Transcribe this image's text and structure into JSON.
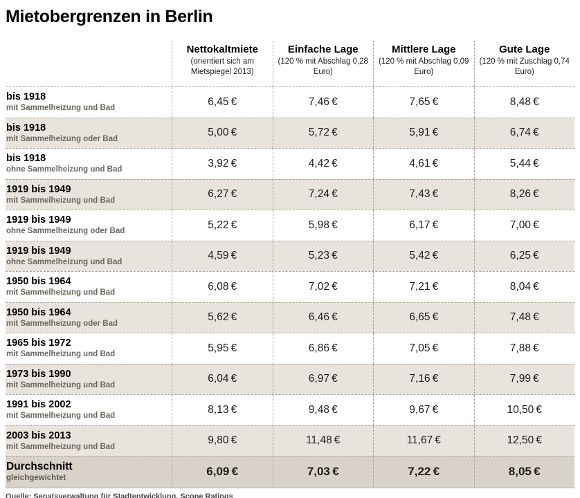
{
  "title": "Mietobergrenzen in Berlin",
  "source": "Quelle: Senatsverwaltung für Stadtentwicklung, Scope Ratings",
  "colors": {
    "row_alt": "#e8e3dc",
    "row_total": "#d8d2c9",
    "dash": "#a6a098"
  },
  "table": {
    "columns": [
      {
        "title": "Nettokaltmiete",
        "subtitle": "(orientiert sich am Mietspiegel 2013)"
      },
      {
        "title": "Einfache Lage",
        "subtitle": "(120 % mit Abschlag 0,28 Euro)"
      },
      {
        "title": "Mittlere Lage",
        "subtitle": "(120 % mit Abschlag 0,09 Euro)"
      },
      {
        "title": "Gute Lage",
        "subtitle": "(120 % mit Zuschlag 0,74 Euro)"
      }
    ],
    "rows": [
      {
        "period": "bis 1918",
        "condition": "mit Sammelheizung und Bad",
        "values": [
          "6,45 €",
          "7,46 €",
          "7,65 €",
          "8,48 €"
        ]
      },
      {
        "period": "bis 1918",
        "condition": "mit Sammelheizung oder Bad",
        "values": [
          "5,00 €",
          "5,72 €",
          "5,91 €",
          "6,74 €"
        ]
      },
      {
        "period": "bis 1918",
        "condition": "ohne Sammelheizung und Bad",
        "values": [
          "3,92 €",
          "4,42 €",
          "4,61 €",
          "5,44 €"
        ]
      },
      {
        "period": "1919 bis 1949",
        "condition": "mit Sammelheizung und Bad",
        "values": [
          "6,27 €",
          "7,24 €",
          "7,43 €",
          "8,26 €"
        ]
      },
      {
        "period": "1919 bis 1949",
        "condition": "ohne Sammelheizung oder Bad",
        "values": [
          "5,22 €",
          "5,98 €",
          "6,17 €",
          "7,00 €"
        ]
      },
      {
        "period": "1919 bis 1949",
        "condition": "ohne Sammelheizung und Bad",
        "values": [
          "4,59 €",
          "5,23 €",
          "5,42 €",
          "6,25 €"
        ]
      },
      {
        "period": "1950 bis 1964",
        "condition": "mit Sammelheizung und Bad",
        "values": [
          "6,08 €",
          "7,02 €",
          "7,21 €",
          "8,04 €"
        ]
      },
      {
        "period": "1950 bis 1964",
        "condition": "mit Sammelheizung oder Bad",
        "values": [
          "5,62 €",
          "6,46 €",
          "6,65 €",
          "7,48 €"
        ]
      },
      {
        "period": "1965 bis 1972",
        "condition": "mit Sammelheizung und Bad",
        "values": [
          "5,95 €",
          "6,86 €",
          "7,05 €",
          "7,88 €"
        ]
      },
      {
        "period": "1973 bis 1990",
        "condition": "mit Sammelheizung und Bad",
        "values": [
          "6,04 €",
          "6,97 €",
          "7,16 €",
          "7,99 €"
        ]
      },
      {
        "period": "1991 bis 2002",
        "condition": "mit Sammelheizung und Bad",
        "values": [
          "8,13 €",
          "9,48 €",
          "9,67 €",
          "10,50 €"
        ]
      },
      {
        "period": "2003 bis 2013",
        "condition": "mit Sammelheizung und Bad",
        "values": [
          "9,80 €",
          "11,48 €",
          "11,67 €",
          "12,50 €"
        ]
      }
    ],
    "total": {
      "period": "Durchschnitt",
      "condition": "gleichgewichtet",
      "values": [
        "6,09 €",
        "7,03 €",
        "7,22 €",
        "8,05 €"
      ]
    }
  },
  "chart_data": {
    "type": "table",
    "title": "Mietobergrenzen in Berlin",
    "columns": [
      "Nettokaltmiete (orientiert sich am Mietspiegel 2013)",
      "Einfache Lage (120 % mit Abschlag 0,28 Euro)",
      "Mittlere Lage (120 % mit Abschlag 0,09 Euro)",
      "Gute Lage (120 % mit Zuschlag 0,74 Euro)"
    ],
    "unit": "EUR",
    "rows": [
      {
        "label": "bis 1918 – mit Sammelheizung und Bad",
        "values": [
          6.45,
          7.46,
          7.65,
          8.48
        ]
      },
      {
        "label": "bis 1918 – mit Sammelheizung oder Bad",
        "values": [
          5.0,
          5.72,
          5.91,
          6.74
        ]
      },
      {
        "label": "bis 1918 – ohne Sammelheizung und Bad",
        "values": [
          3.92,
          4.42,
          4.61,
          5.44
        ]
      },
      {
        "label": "1919 bis 1949 – mit Sammelheizung und Bad",
        "values": [
          6.27,
          7.24,
          7.43,
          8.26
        ]
      },
      {
        "label": "1919 bis 1949 – ohne Sammelheizung oder Bad",
        "values": [
          5.22,
          5.98,
          6.17,
          7.0
        ]
      },
      {
        "label": "1919 bis 1949 – ohne Sammelheizung und Bad",
        "values": [
          4.59,
          5.23,
          5.42,
          6.25
        ]
      },
      {
        "label": "1950 bis 1964 – mit Sammelheizung und Bad",
        "values": [
          6.08,
          7.02,
          7.21,
          8.04
        ]
      },
      {
        "label": "1950 bis 1964 – mit Sammelheizung oder Bad",
        "values": [
          5.62,
          6.46,
          6.65,
          7.48
        ]
      },
      {
        "label": "1965 bis 1972 – mit Sammelheizung und Bad",
        "values": [
          5.95,
          6.86,
          7.05,
          7.88
        ]
      },
      {
        "label": "1973 bis 1990 – mit Sammelheizung und Bad",
        "values": [
          6.04,
          6.97,
          7.16,
          7.99
        ]
      },
      {
        "label": "1991 bis 2002 – mit Sammelheizung und Bad",
        "values": [
          8.13,
          9.48,
          9.67,
          10.5
        ]
      },
      {
        "label": "2003 bis 2013 – mit Sammelheizung und Bad",
        "values": [
          9.8,
          11.48,
          11.67,
          12.5
        ]
      },
      {
        "label": "Durchschnitt – gleichgewichtet",
        "values": [
          6.09,
          7.03,
          7.22,
          8.05
        ]
      }
    ],
    "source": "Quelle: Senatsverwaltung für Stadtentwicklung, Scope Ratings"
  }
}
